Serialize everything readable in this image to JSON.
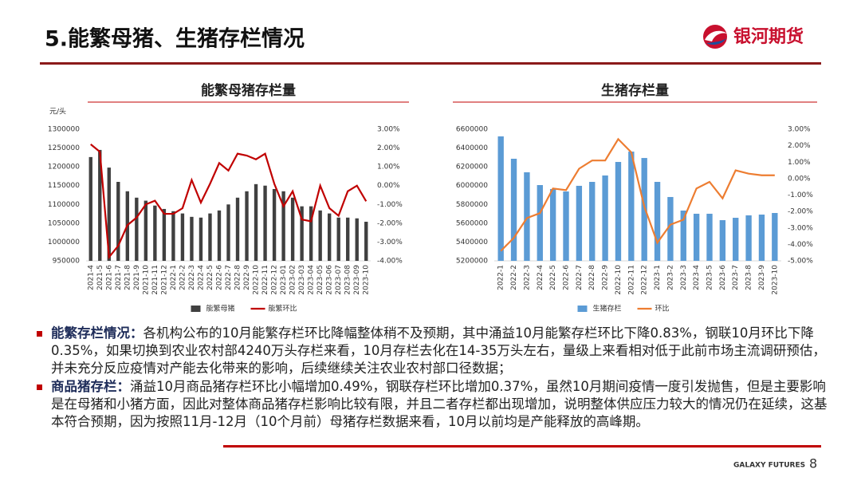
{
  "slide": {
    "title": "5.能繁母猪、生猪存栏情况",
    "logo": "银河期货",
    "footer": "GALAXY FUTURES",
    "page": 8,
    "bullets": [
      {
        "label": "能繁存栏情况：",
        "text": "各机构公布的10月能繁存栏环比降幅整体稍不及预期，其中涌益10月能繁存栏环比下降0.83%，钢联10月环比下降0.35%，如果切换到农业农村部4240万头存栏来看，10月存栏去化在14-35万头左右，量级上来看相对低于此前市场主流调研预估，并未充分反应疫情对产能去化带来的影响，后续继续关注农业农村部口径数据；"
      },
      {
        "label": "商品猪存栏：",
        "text": "涌益10月商品猪存栏环比小幅增加0.49%，钢联存栏环比增加0.37%，虽然10月期间疫情一度引发抛售，但是主要影响是在母猪和小猪方面，因此对整体商品猪存栏影响比较有限，并且二者存栏都出现增加，说明整体供应压力较大的情况仍在延续，这基本符合预期，因为按照11月-12月（10个月前）母猪存栏数据来看，10月以前均是产能释放的高峰期。"
      }
    ]
  },
  "chart_data": [
    {
      "type": "bar",
      "title": "能繁母猪存栏量",
      "y_label": "元/头",
      "categories": [
        "2021-4",
        "2021-5",
        "2021-6",
        "2021-7",
        "2021-8",
        "2021-9",
        "2021-10",
        "2021-11",
        "2021-12",
        "2022-1",
        "2022-2",
        "2022-3",
        "2022-4",
        "2022-5",
        "2022-6",
        "2022-7",
        "2022-8",
        "2022-9",
        "2022-10",
        "2022-11",
        "2022-12",
        "2023-01",
        "2023-02",
        "2023-03",
        "2023-04",
        "2023-05",
        "2023-06",
        "2023-07",
        "2023-08",
        "2023-09",
        "2023-10"
      ],
      "series": [
        {
          "name": "能繁母猪",
          "type": "bar",
          "color": "#404040",
          "values": [
            1226000,
            1245000,
            1198000,
            1160000,
            1135000,
            1118000,
            1110000,
            1097000,
            1088000,
            1082000,
            1076000,
            1067000,
            1065000,
            1076000,
            1084000,
            1100000,
            1118000,
            1135000,
            1154000,
            1150000,
            1141000,
            1135000,
            1118000,
            1095000,
            1095000,
            1084000,
            1076000,
            1065000,
            1065000,
            1063000,
            1054000
          ]
        },
        {
          "name": "能繁环比",
          "type": "line",
          "axis": "y2",
          "color": "#c00000",
          "values": [
            2.2,
            1.8,
            -3.8,
            -3.2,
            -2.1,
            -1.7,
            -1.0,
            -0.8,
            -1.5,
            -1.5,
            -1.2,
            0.3,
            -0.9,
            0.1,
            1.2,
            0.8,
            1.7,
            1.6,
            1.4,
            1.7,
            0.1,
            -1.1,
            -0.3,
            -1.8,
            -1.9,
            0.0,
            -1.2,
            -1.6,
            -0.3,
            0.0,
            -0.83
          ]
        }
      ],
      "ylim": [
        950000,
        1300000
      ],
      "yticks": [
        950000,
        1000000,
        1050000,
        1100000,
        1150000,
        1200000,
        1250000,
        1300000
      ],
      "y2lim": [
        -4,
        3
      ],
      "y2ticks": [
        {
          "value": -4,
          "label": "-4.00%"
        },
        {
          "value": -3,
          "label": "-3.00%"
        },
        {
          "value": -2,
          "label": "-2.00%"
        },
        {
          "value": -1,
          "label": "-1.00%"
        },
        {
          "value": 0,
          "label": "0.00%"
        },
        {
          "value": 1,
          "label": "1.00%"
        },
        {
          "value": 2,
          "label": "2.00%"
        },
        {
          "value": 3,
          "label": "3.00%"
        }
      ],
      "legend": "bottom"
    },
    {
      "type": "bar",
      "title": "生猪存栏量",
      "categories": [
        "2022-1",
        "2022-2",
        "2022-3",
        "2022-4",
        "2022-5",
        "2022-6",
        "2022-7",
        "2022-8",
        "2022-9",
        "2022-10",
        "2022-11",
        "2022-12",
        "2023-1",
        "2023-2",
        "2023-3",
        "2023-4",
        "2023-5",
        "2023-6",
        "2023-7",
        "2023-8",
        "2023-9",
        "2023-10"
      ],
      "series": [
        {
          "name": "生猪存栏",
          "type": "bar",
          "color": "#5b9bd5",
          "values": [
            6524000,
            6286000,
            6142000,
            6006000,
            5964000,
            5938000,
            5998000,
            6040000,
            6108000,
            6252000,
            6362000,
            6294000,
            6040000,
            5879000,
            5735000,
            5701000,
            5701000,
            5633000,
            5658000,
            5684000,
            5692000,
            5709000
          ]
        },
        {
          "name": "环比",
          "type": "line",
          "axis": "y2",
          "color": "#ed7d31",
          "values": [
            -4.4,
            -3.6,
            -2.4,
            -2.1,
            -0.6,
            -0.7,
            0.6,
            1.1,
            1.1,
            2.4,
            1.6,
            -1.7,
            -3.9,
            -2.8,
            -2.5,
            -0.6,
            -0.2,
            -1.2,
            0.5,
            0.3,
            0.2,
            0.2
          ]
        }
      ],
      "ylim": [
        5200000,
        6600000
      ],
      "yticks": [
        5200000,
        5400000,
        5600000,
        5800000,
        6000000,
        6200000,
        6400000,
        6600000
      ],
      "y2lim": [
        -5,
        3
      ],
      "y2ticks": [
        {
          "value": -5,
          "label": "-5.00%"
        },
        {
          "value": -4,
          "label": "-4.00%"
        },
        {
          "value": -3,
          "label": "-3.00%"
        },
        {
          "value": -2,
          "label": "-2.00%"
        },
        {
          "value": -1,
          "label": "-1.00%"
        },
        {
          "value": 0,
          "label": "0.00%"
        },
        {
          "value": 1,
          "label": "1.00%"
        },
        {
          "value": 2,
          "label": "2.00%"
        },
        {
          "value": 3,
          "label": "3.00%"
        }
      ],
      "legend": "bottom"
    }
  ]
}
